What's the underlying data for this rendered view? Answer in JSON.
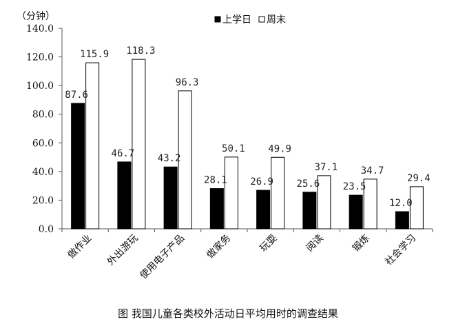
{
  "chart_data": {
    "type": "bar",
    "unit_label": "（分钟）",
    "categories": [
      "做作业",
      "外出游玩",
      "使用电子产品",
      "做家务",
      "玩耍",
      "阅读",
      "锻炼",
      "社会学习"
    ],
    "series": [
      {
        "name": "上学日",
        "values": [
          87.6,
          46.7,
          43.2,
          28.1,
          26.9,
          25.6,
          23.5,
          12.0
        ],
        "fill": "#000000"
      },
      {
        "name": "周末",
        "values": [
          115.9,
          118.3,
          96.3,
          50.1,
          49.9,
          37.1,
          34.7,
          29.4
        ],
        "fill": "#ffffff"
      }
    ],
    "ylim": [
      0,
      140
    ],
    "yticks": [
      "0.0",
      "20.0",
      "40.0",
      "60.0",
      "80.0",
      "100.0",
      "120.0",
      "140.0"
    ],
    "data_labels": [
      [
        "87.6",
        "46.7",
        "43.2",
        "28.1",
        "26.9",
        "25.6",
        "23.5",
        "12.0"
      ],
      [
        "115.9",
        "118.3",
        "96.3",
        "50.1",
        "49.9",
        "37.1",
        "34.7",
        "29.4"
      ]
    ],
    "legend_position": "top-center",
    "grid": false,
    "caption": "图  我国儿童各类校外活动日平均用时的调查结果"
  }
}
